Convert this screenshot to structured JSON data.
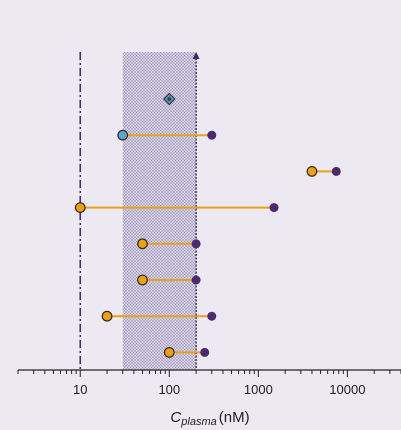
{
  "chart_data": {
    "type": "dumbbell",
    "x_scale": "log",
    "xlim": [
      2,
      40000
    ],
    "x_ticks": [
      10,
      100,
      1000,
      10000
    ],
    "x_tick_labels": [
      "10",
      "100",
      "1000",
      "10000"
    ],
    "xlabel": {
      "symbol": "C",
      "subscript": "plasma",
      "unit": "(nM)"
    },
    "reference_line": {
      "x": 10,
      "style": "dash-dot"
    },
    "shaded_band": {
      "x_start": 30,
      "x_end": 200,
      "arrow_at_end": true
    },
    "rows": [
      {
        "low": 100,
        "high": 100,
        "marker": "diamond"
      },
      {
        "low": 30,
        "high": 300,
        "low_fill": "light-blue"
      },
      {
        "low": 4000,
        "high": 7500
      },
      {
        "low": 10,
        "high": 1500
      },
      {
        "low": 50,
        "high": 200
      },
      {
        "low": 50,
        "high": 200
      },
      {
        "low": 20,
        "high": 300
      },
      {
        "low": 100,
        "high": 250
      }
    ],
    "grid": false,
    "legend": "none"
  },
  "colors": {
    "background": "#ede9f2",
    "axis": "#222222",
    "segment": "#e8a21a",
    "low_marker": "#e8a21a",
    "low_marker_alt": "#5aa8d0",
    "high_marker": "#4a2c6e",
    "reference_line": "#4a2c6e",
    "band_fill": "#c8c4d8",
    "band_edge": "#3d2b5e",
    "diamond_fill": "#4aa08c"
  }
}
